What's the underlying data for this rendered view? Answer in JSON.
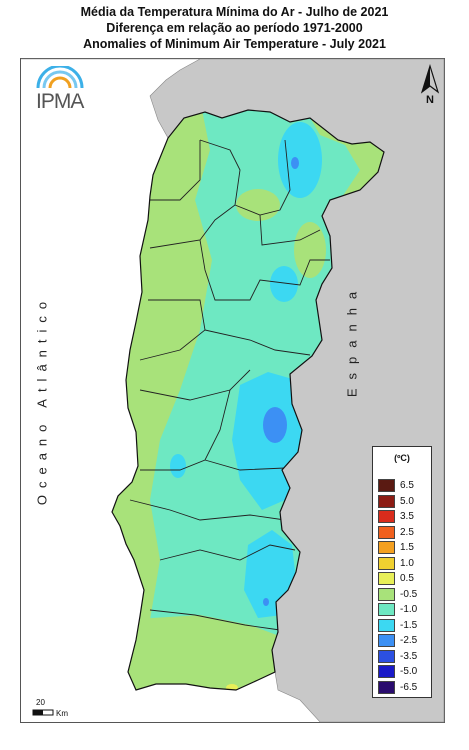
{
  "title": {
    "line1": "Média da Temperatura Mínima do Ar - Julho de 2021",
    "line2": "Diferença em relação ao período 1971-2000",
    "line3": "Anomalies of Minimum Air Temperature - July 2021"
  },
  "logo": {
    "text": "IPMA",
    "icon": "ipma-arc-logo"
  },
  "north_arrow": {
    "label": "N",
    "icon": "north-arrow-icon"
  },
  "labels": {
    "ocean": "Oceano Atlântico",
    "country": "Espanha"
  },
  "legend": {
    "unit": "(ºC)",
    "classes": [
      {
        "label": "6.5",
        "color": "#5a1a12"
      },
      {
        "label": "5.0",
        "color": "#8c1c14"
      },
      {
        "label": "3.5",
        "color": "#d92c1c"
      },
      {
        "label": "2.5",
        "color": "#f0601e"
      },
      {
        "label": "1.5",
        "color": "#f4a020"
      },
      {
        "label": "1.0",
        "color": "#f0d030"
      },
      {
        "label": "0.5",
        "color": "#e8ef58"
      },
      {
        "label": "-0.5",
        "color": "#a8e27a"
      },
      {
        "label": "-1.0",
        "color": "#6ee8c2"
      },
      {
        "label": "-1.5",
        "color": "#3cd8f2"
      },
      {
        "label": "-2.5",
        "color": "#3c90f4"
      },
      {
        "label": "-3.5",
        "color": "#2c50e2"
      },
      {
        "label": "-5.0",
        "color": "#1a1ac8"
      },
      {
        "label": "-6.5",
        "color": "#2a0c6e"
      }
    ]
  },
  "scale_bar": {
    "value": "20",
    "unit": "Km"
  },
  "colors": {
    "land_outside": "#c8c8c8",
    "sea": "#ffffff",
    "border": "#333333"
  }
}
